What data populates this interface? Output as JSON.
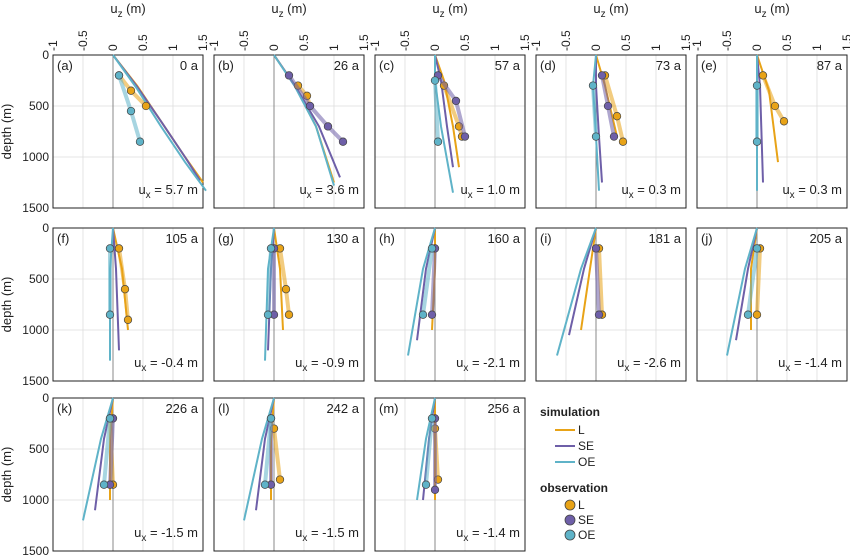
{
  "chart_data": {
    "type": "line",
    "xlabel_top": "u",
    "xlabel_top_sub": "z",
    "xlabel_top_unit": " (m)",
    "ylabel": "depth (m)",
    "xlim": [
      -1,
      1.5
    ],
    "ylim": [
      0,
      1500
    ],
    "x_tick_labels": [
      "-1",
      "-0.5",
      "0",
      "0.5",
      "1",
      "1.5"
    ],
    "x_ticks": [
      -1,
      -0.5,
      0,
      0.5,
      1,
      1.5
    ],
    "y_tick_labels": [
      "0",
      "500",
      "1000",
      "1500"
    ],
    "y_ticks": [
      0,
      500,
      1000,
      1500
    ],
    "grid": true,
    "colors": {
      "L": "#e8a317",
      "SE": "#6e5fa8",
      "OE": "#5fb3c8",
      "axis": "#222222",
      "grid": "#dddddd",
      "zero": "#888888"
    },
    "legend": {
      "simulation_title": "simulation",
      "observation_title": "observation",
      "items": [
        "L",
        "SE",
        "OE"
      ]
    },
    "ux_prefix": "u",
    "ux_sub": "x",
    "panels": [
      {
        "label": "(a)",
        "time": "0 a",
        "ux": " = 5.7 m",
        "sim": {
          "L": [
            [
              0,
              0
            ],
            [
              0.4,
              300
            ],
            [
              0.8,
              650
            ],
            [
              1.2,
              1000
            ],
            [
              1.5,
              1250
            ]
          ],
          "SE": [
            [
              0,
              0
            ],
            [
              0.4,
              310
            ],
            [
              0.8,
              650
            ],
            [
              1.2,
              1000
            ],
            [
              1.45,
              1230
            ]
          ],
          "OE": [
            [
              0,
              0
            ],
            [
              0.4,
              330
            ],
            [
              0.8,
              700
            ],
            [
              1.2,
              1050
            ],
            [
              1.55,
              1330
            ]
          ]
        },
        "obs": {
          "L": [
            [
              0.1,
              200
            ],
            [
              0.3,
              350
            ],
            [
              0.55,
              500
            ]
          ],
          "SE": [],
          "OE": [
            [
              0.1,
              200
            ],
            [
              0.3,
              550
            ],
            [
              0.45,
              850
            ]
          ]
        }
      },
      {
        "label": "(b)",
        "time": "26 a",
        "ux": " = 3.6 m",
        "sim": {
          "L": [
            [
              0,
              0
            ],
            [
              0.35,
              300
            ],
            [
              0.7,
              700
            ],
            [
              1.0,
              1250
            ]
          ],
          "SE": [
            [
              0,
              0
            ],
            [
              0.35,
              300
            ],
            [
              0.75,
              700
            ],
            [
              1.1,
              1200
            ]
          ],
          "OE": [
            [
              0,
              0
            ],
            [
              0.35,
              310
            ],
            [
              0.7,
              700
            ],
            [
              1.0,
              1280
            ]
          ]
        },
        "obs": {
          "L": [
            [
              0.4,
              300
            ],
            [
              0.55,
              400
            ],
            [
              0.6,
              500
            ]
          ],
          "SE": [
            [
              0.25,
              200
            ],
            [
              0.6,
              500
            ],
            [
              0.9,
              700
            ],
            [
              1.15,
              850
            ]
          ],
          "OE": []
        }
      },
      {
        "label": "(c)",
        "time": "57 a",
        "ux": " = 1.0 m",
        "sim": {
          "L": [
            [
              0,
              0
            ],
            [
              0.15,
              250
            ],
            [
              0.3,
              700
            ],
            [
              0.4,
              1100
            ]
          ],
          "SE": [
            [
              0,
              0
            ],
            [
              0.1,
              250
            ],
            [
              0.2,
              700
            ],
            [
              0.3,
              1100
            ]
          ],
          "OE": [
            [
              0,
              0
            ],
            [
              0.0,
              250
            ],
            [
              0.1,
              700
            ],
            [
              0.3,
              1350
            ]
          ]
        },
        "obs": {
          "L": [
            [
              0.15,
              300
            ],
            [
              0.4,
              700
            ],
            [
              0.45,
              800
            ]
          ],
          "SE": [
            [
              0.05,
              200
            ],
            [
              0.35,
              450
            ],
            [
              0.5,
              800
            ]
          ],
          "OE": [
            [
              0.0,
              250
            ],
            [
              0.05,
              850
            ]
          ]
        }
      },
      {
        "label": "(d)",
        "time": "73 a",
        "ux": " = 0.3 m",
        "sim": {
          "L": [
            [
              0,
              0
            ],
            [
              0.15,
              300
            ],
            [
              0.35,
              800
            ]
          ],
          "SE": [
            [
              0,
              0
            ],
            [
              0.0,
              300
            ],
            [
              0.05,
              800
            ],
            [
              0.1,
              1250
            ]
          ],
          "OE": [
            [
              0,
              0
            ],
            [
              -0.05,
              300
            ],
            [
              0.0,
              800
            ],
            [
              0.05,
              1330
            ]
          ]
        },
        "obs": {
          "L": [
            [
              0.15,
              200
            ],
            [
              0.35,
              600
            ],
            [
              0.45,
              850
            ]
          ],
          "SE": [
            [
              0.1,
              200
            ],
            [
              0.2,
              500
            ],
            [
              0.3,
              800
            ]
          ],
          "OE": [
            [
              -0.05,
              300
            ],
            [
              0.0,
              800
            ]
          ]
        }
      },
      {
        "label": "(e)",
        "time": "87 a",
        "ux": " = 0.3 m",
        "sim": {
          "L": [
            [
              0,
              0
            ],
            [
              0.2,
              350
            ],
            [
              0.35,
              1050
            ]
          ],
          "SE": [
            [
              0,
              0
            ],
            [
              0.05,
              300
            ],
            [
              0.1,
              1250
            ]
          ],
          "OE": [
            [
              0,
              0
            ],
            [
              0.0,
              300
            ],
            [
              0.0,
              1330
            ]
          ]
        },
        "obs": {
          "L": [
            [
              0.1,
              200
            ],
            [
              0.3,
              500
            ],
            [
              0.45,
              650
            ]
          ],
          "SE": [],
          "OE": [
            [
              0.0,
              300
            ],
            [
              0.0,
              850
            ]
          ]
        }
      },
      {
        "label": "(f)",
        "time": "105 a",
        "ux": " = -0.4 m",
        "sim": {
          "L": [
            [
              0,
              0
            ],
            [
              0.15,
              400
            ],
            [
              0.25,
              1000
            ]
          ],
          "SE": [
            [
              0,
              0
            ],
            [
              0.05,
              400
            ],
            [
              0.1,
              1200
            ]
          ],
          "OE": [
            [
              0,
              0
            ],
            [
              -0.05,
              400
            ],
            [
              -0.05,
              1300
            ]
          ]
        },
        "obs": {
          "L": [
            [
              0.1,
              200
            ],
            [
              0.2,
              600
            ],
            [
              0.25,
              900
            ]
          ],
          "SE": [],
          "OE": [
            [
              -0.05,
              200
            ],
            [
              -0.05,
              850
            ]
          ]
        }
      },
      {
        "label": "(g)",
        "time": "130 a",
        "ux": " = -0.9 m",
        "sim": {
          "L": [
            [
              0,
              0
            ],
            [
              0.1,
              400
            ],
            [
              0.15,
              1000
            ]
          ],
          "SE": [
            [
              0,
              0
            ],
            [
              -0.05,
              400
            ],
            [
              -0.1,
              1200
            ]
          ],
          "OE": [
            [
              0,
              0
            ],
            [
              -0.1,
              400
            ],
            [
              -0.15,
              1300
            ]
          ]
        },
        "obs": {
          "L": [
            [
              0.1,
              200
            ],
            [
              0.2,
              600
            ],
            [
              0.25,
              850
            ]
          ],
          "SE": [
            [
              0.0,
              200
            ],
            [
              0.0,
              850
            ]
          ],
          "OE": [
            [
              -0.05,
              200
            ],
            [
              -0.1,
              850
            ]
          ]
        }
      },
      {
        "label": "(h)",
        "time": "160 a",
        "ux": " = -2.1 m",
        "sim": {
          "L": [
            [
              0,
              0
            ],
            [
              0.0,
              400
            ],
            [
              -0.05,
              1000
            ]
          ],
          "SE": [
            [
              0,
              0
            ],
            [
              -0.15,
              400
            ],
            [
              -0.3,
              1100
            ]
          ],
          "OE": [
            [
              0,
              0
            ],
            [
              -0.2,
              400
            ],
            [
              -0.45,
              1250
            ]
          ]
        },
        "obs": {
          "L": [],
          "SE": [
            [
              0.0,
              200
            ],
            [
              -0.05,
              850
            ]
          ],
          "OE": [
            [
              -0.05,
              200
            ],
            [
              -0.2,
              850
            ]
          ]
        }
      },
      {
        "label": "(i)",
        "time": "181 a",
        "ux": " = -2.6 m",
        "sim": {
          "L": [
            [
              0,
              0
            ],
            [
              -0.1,
              400
            ],
            [
              -0.25,
              1000
            ]
          ],
          "SE": [
            [
              0,
              0
            ],
            [
              -0.2,
              400
            ],
            [
              -0.45,
              1050
            ]
          ],
          "OE": [
            [
              0,
              0
            ],
            [
              -0.25,
              400
            ],
            [
              -0.65,
              1250
            ]
          ]
        },
        "obs": {
          "L": [
            [
              0.05,
              200
            ],
            [
              0.1,
              850
            ]
          ],
          "SE": [
            [
              0.0,
              200
            ],
            [
              0.05,
              850
            ]
          ],
          "OE": []
        }
      },
      {
        "label": "(j)",
        "time": "205 a",
        "ux": " = -1.4 m",
        "sim": {
          "L": [
            [
              0,
              0
            ],
            [
              -0.1,
              400
            ],
            [
              -0.1,
              1000
            ]
          ],
          "SE": [
            [
              0,
              0
            ],
            [
              -0.15,
              400
            ],
            [
              -0.35,
              1100
            ]
          ],
          "OE": [
            [
              0,
              0
            ],
            [
              -0.2,
              400
            ],
            [
              -0.5,
              1250
            ]
          ]
        },
        "obs": {
          "L": [
            [
              0.05,
              200
            ],
            [
              0.0,
              850
            ]
          ],
          "SE": [],
          "OE": [
            [
              0.0,
              200
            ],
            [
              -0.15,
              850
            ]
          ]
        }
      },
      {
        "label": "(k)",
        "time": "226 a",
        "ux": " = -1.5 m",
        "sim": {
          "L": [
            [
              0,
              0
            ],
            [
              -0.05,
              400
            ],
            [
              -0.05,
              1000
            ]
          ],
          "SE": [
            [
              0,
              0
            ],
            [
              -0.15,
              400
            ],
            [
              -0.3,
              1100
            ]
          ],
          "OE": [
            [
              0,
              0
            ],
            [
              -0.2,
              400
            ],
            [
              -0.5,
              1200
            ]
          ]
        },
        "obs": {
          "L": [
            [
              -0.05,
              200
            ],
            [
              0.0,
              850
            ]
          ],
          "SE": [
            [
              0.0,
              200
            ],
            [
              -0.05,
              850
            ]
          ],
          "OE": [
            [
              -0.05,
              200
            ],
            [
              -0.15,
              850
            ]
          ]
        }
      },
      {
        "label": "(l)",
        "time": "242 a",
        "ux": " = -1.5 m",
        "sim": {
          "L": [
            [
              0,
              0
            ],
            [
              -0.05,
              400
            ],
            [
              -0.05,
              1000
            ]
          ],
          "SE": [
            [
              0,
              0
            ],
            [
              -0.15,
              400
            ],
            [
              -0.3,
              1100
            ]
          ],
          "OE": [
            [
              0,
              0
            ],
            [
              -0.2,
              400
            ],
            [
              -0.5,
              1200
            ]
          ]
        },
        "obs": {
          "L": [
            [
              0.0,
              300
            ],
            [
              0.1,
              800
            ]
          ],
          "SE": [
            [
              -0.05,
              200
            ],
            [
              -0.05,
              850
            ]
          ],
          "OE": [
            [
              -0.05,
              200
            ],
            [
              -0.15,
              850
            ]
          ]
        }
      },
      {
        "label": "(m)",
        "time": "256 a",
        "ux": " = -1.4 m",
        "sim": {
          "L": [
            [
              0,
              0
            ],
            [
              0.0,
              400
            ],
            [
              0.0,
              1000
            ]
          ],
          "SE": [
            [
              0,
              0
            ],
            [
              -0.1,
              400
            ],
            [
              -0.2,
              1000
            ]
          ],
          "OE": [
            [
              0,
              0
            ],
            [
              -0.15,
              400
            ],
            [
              -0.3,
              1000
            ]
          ]
        },
        "obs": {
          "L": [
            [
              0.0,
              300
            ],
            [
              0.05,
              800
            ]
          ],
          "SE": [
            [
              0.0,
              200
            ],
            [
              0.0,
              900
            ]
          ],
          "OE": [
            [
              -0.05,
              200
            ],
            [
              -0.15,
              850
            ]
          ]
        }
      }
    ]
  }
}
